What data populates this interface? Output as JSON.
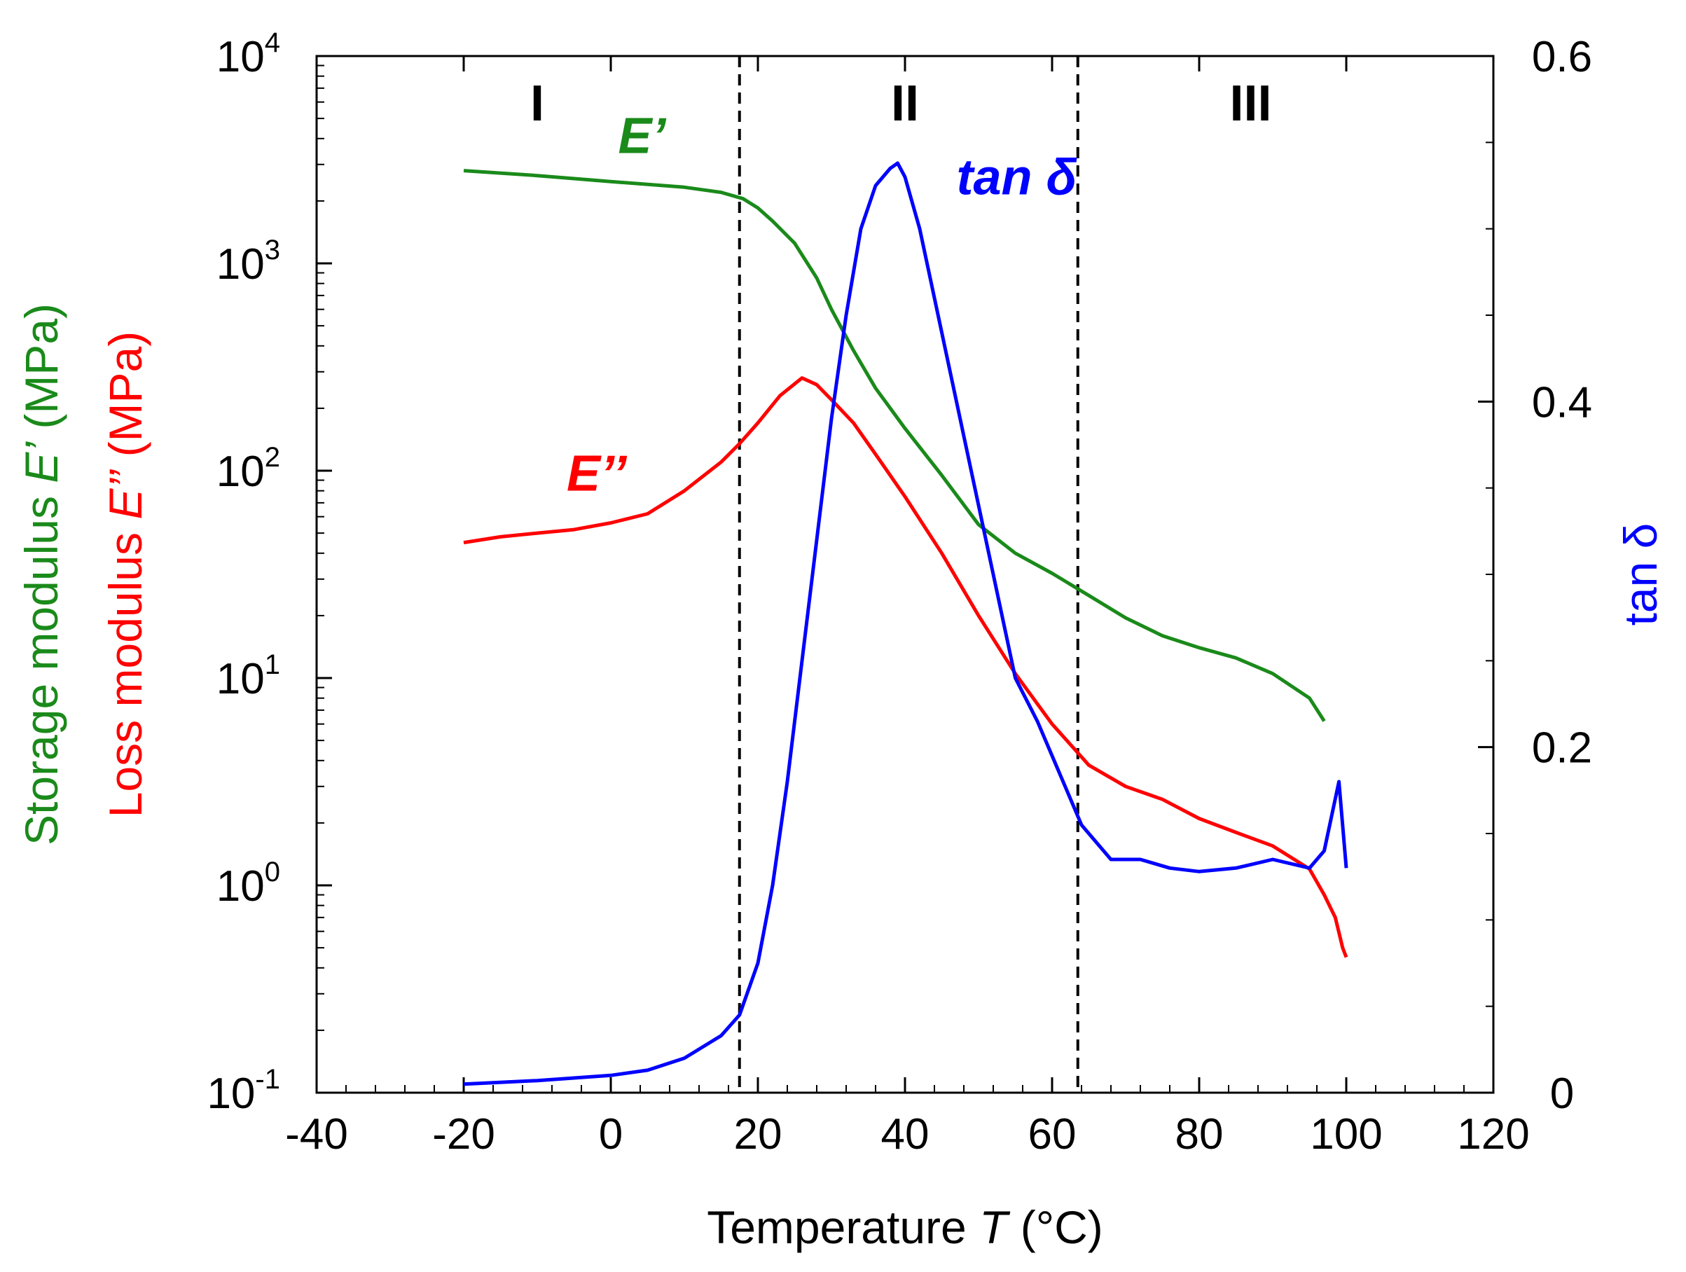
{
  "chart_data": {
    "type": "line",
    "x": {
      "label_prefix": "Temperature ",
      "label_symbol": "T",
      "label_unit": " (°C)",
      "range": [
        -40,
        120
      ],
      "ticks": [
        -40,
        -20,
        0,
        20,
        40,
        60,
        80,
        100,
        120
      ],
      "tick_labels": [
        "-40",
        "-20",
        "0",
        "20",
        "40",
        "60",
        "80",
        "100",
        "120"
      ]
    },
    "y_left": {
      "scale": "log",
      "range": [
        0.1,
        10000
      ],
      "tick_labels": [
        {
          "base": "10",
          "exp": "-1",
          "value": 0.1
        },
        {
          "base": "10",
          "exp": "0",
          "value": 1
        },
        {
          "base": "10",
          "exp": "1",
          "value": 10
        },
        {
          "base": "10",
          "exp": "2",
          "value": 100
        },
        {
          "base": "10",
          "exp": "3",
          "value": 1000
        },
        {
          "base": "10",
          "exp": "4",
          "value": 10000
        }
      ],
      "title_storage": "Storage modulus ",
      "title_storage_symbol": "E’",
      "title_loss": "Loss modulus ",
      "title_loss_symbol": "E’’",
      "title_unit": " (MPa)"
    },
    "y_right": {
      "scale": "linear",
      "range": [
        0,
        0.6
      ],
      "ticks": [
        0,
        0.2,
        0.4,
        0.6
      ],
      "tick_labels": [
        "0",
        "0.2",
        "0.4",
        "0.6"
      ],
      "title": "tan δ"
    },
    "regions": [
      {
        "label": "I",
        "x": -10
      },
      {
        "label": "II",
        "x": 40
      },
      {
        "label": "III",
        "x": 87
      }
    ],
    "dividers_x": [
      17.5,
      63.5
    ],
    "series": [
      {
        "name": "E’",
        "label": "E’",
        "axis": "left",
        "color": "#1a8a1a",
        "label_at": [
          1,
          3400
        ],
        "x": [
          -20,
          -10,
          0,
          10,
          15,
          18,
          20,
          22,
          25,
          28,
          30,
          33,
          36,
          40,
          45,
          50,
          55,
          60,
          65,
          70,
          75,
          80,
          85,
          90,
          95,
          97
        ],
        "y": [
          2800,
          2650,
          2480,
          2330,
          2200,
          2050,
          1850,
          1600,
          1250,
          850,
          600,
          380,
          250,
          160,
          95,
          55,
          40,
          32,
          25,
          19.5,
          16,
          14,
          12.5,
          10.5,
          8,
          6.2
        ]
      },
      {
        "name": "E’’",
        "label": "E’’",
        "axis": "left",
        "color": "#ff0000",
        "label_at": [
          -6,
          80
        ],
        "x": [
          -20,
          -15,
          -10,
          -5,
          0,
          5,
          10,
          15,
          17.5,
          20,
          23,
          26,
          28,
          30,
          33,
          36,
          40,
          45,
          50,
          55,
          60,
          65,
          70,
          75,
          80,
          85,
          90,
          95,
          97,
          98.5,
          99.5,
          100
        ],
        "y": [
          45,
          48,
          50,
          52,
          56,
          62,
          80,
          110,
          135,
          170,
          230,
          280,
          260,
          220,
          170,
          120,
          75,
          40,
          20,
          10.5,
          6,
          3.8,
          3,
          2.6,
          2.1,
          1.8,
          1.55,
          1.2,
          0.9,
          0.7,
          0.5,
          0.45
        ]
      },
      {
        "name": "tan δ",
        "label": "tan δ",
        "axis": "right",
        "color": "#0000ff",
        "label_at": [
          47,
          0.52
        ],
        "x": [
          -20,
          -10,
          0,
          5,
          10,
          15,
          17.5,
          20,
          22,
          24,
          26,
          28,
          30,
          32,
          34,
          36,
          38,
          39,
          40,
          42,
          45,
          48,
          50,
          52,
          55,
          58,
          60,
          62,
          64,
          68,
          72,
          76,
          80,
          85,
          90,
          95,
          97,
          98,
          99,
          100
        ],
        "y": [
          0.005,
          0.007,
          0.01,
          0.013,
          0.02,
          0.033,
          0.045,
          0.075,
          0.12,
          0.18,
          0.25,
          0.32,
          0.39,
          0.45,
          0.5,
          0.525,
          0.535,
          0.538,
          0.53,
          0.5,
          0.44,
          0.38,
          0.34,
          0.3,
          0.24,
          0.215,
          0.195,
          0.175,
          0.155,
          0.135,
          0.135,
          0.13,
          0.128,
          0.13,
          0.135,
          0.13,
          0.14,
          0.16,
          0.18,
          0.13
        ]
      }
    ]
  }
}
